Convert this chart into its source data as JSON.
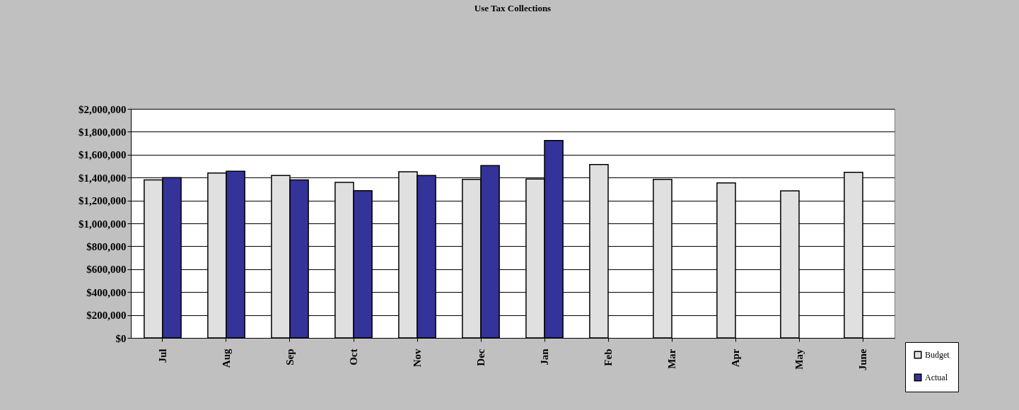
{
  "chart_data": {
    "type": "bar",
    "title": "Use Tax Collections",
    "categories": [
      "Jul",
      "Aug",
      "Sep",
      "Oct",
      "Nov",
      "Dec",
      "Jan",
      "Feb",
      "Mar",
      "Apr",
      "May",
      "June"
    ],
    "series": [
      {
        "name": "Budget",
        "color": "#e0e0e0",
        "values": [
          1380000,
          1440000,
          1418000,
          1358000,
          1450000,
          1385000,
          1387000,
          1514000,
          1385000,
          1354000,
          1284000,
          1446000
        ]
      },
      {
        "name": "Actual",
        "color": "#333399",
        "values": [
          1400000,
          1455000,
          1380000,
          1285000,
          1418000,
          1505000,
          1723000,
          null,
          null,
          null,
          null,
          null
        ]
      }
    ],
    "ylim": [
      0,
      2000000
    ],
    "yticks": [
      {
        "value": 0,
        "label": "$0"
      },
      {
        "value": 200000,
        "label": "$200,000"
      },
      {
        "value": 400000,
        "label": "$400,000"
      },
      {
        "value": 600000,
        "label": "$600,000"
      },
      {
        "value": 800000,
        "label": "$800,000"
      },
      {
        "value": 1000000,
        "label": "$1,000,000"
      },
      {
        "value": 1200000,
        "label": "$1,200,000"
      },
      {
        "value": 1400000,
        "label": "$1,400,000"
      },
      {
        "value": 1600000,
        "label": "$1,600,000"
      },
      {
        "value": 1800000,
        "label": "$1,800,000"
      },
      {
        "value": 2000000,
        "label": "$2,000,000"
      }
    ],
    "grid": "y",
    "legend": "bottom right"
  }
}
